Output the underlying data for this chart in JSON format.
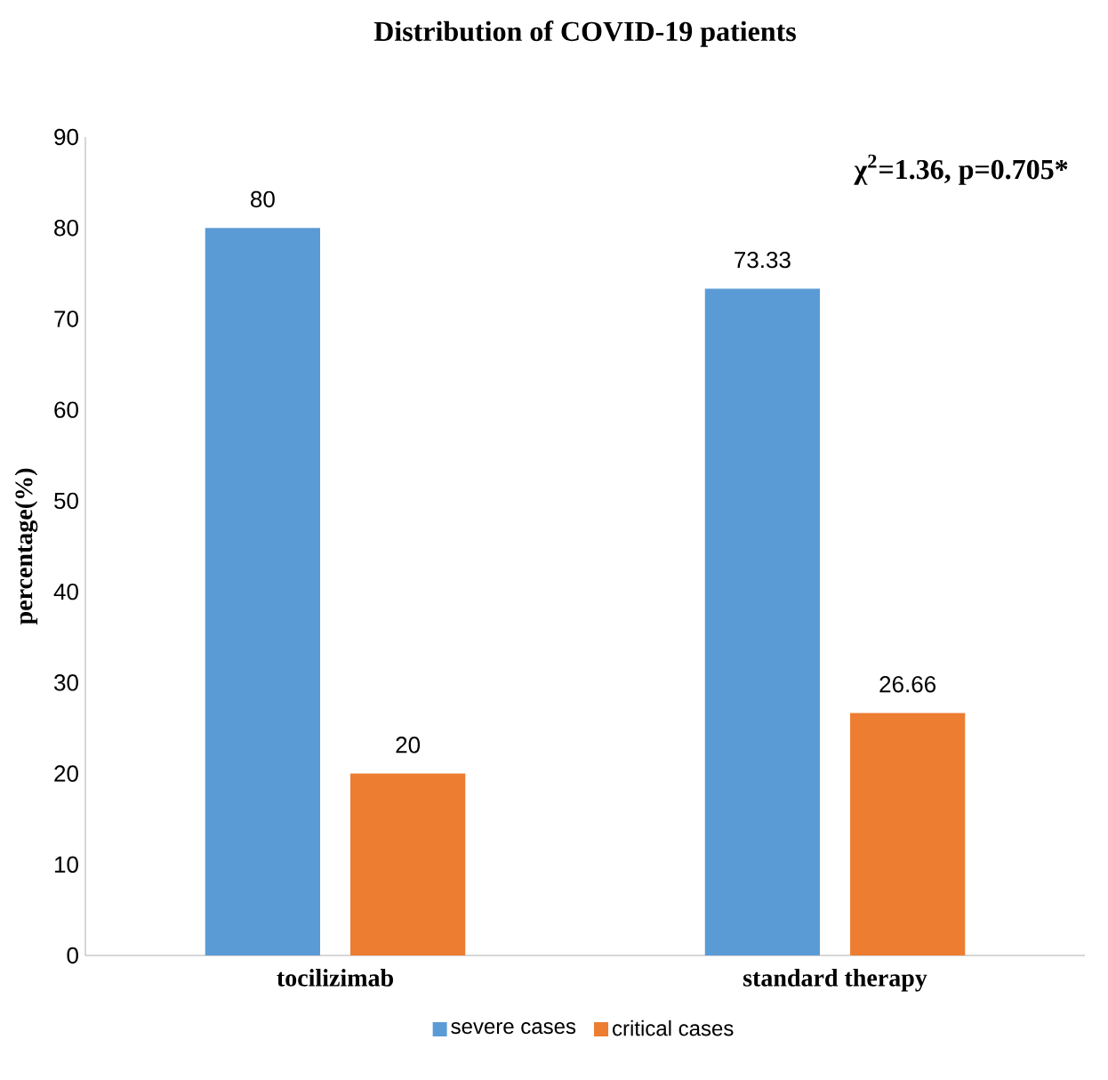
{
  "chart_data": {
    "type": "bar",
    "title": "Distribution of COVID-19 patients",
    "ylabel": "percentage(%)",
    "categories": [
      "tocilizimab",
      "standard therapy"
    ],
    "series": [
      {
        "name": "severe cases",
        "color": "#5b9bd5",
        "values": [
          80,
          73.33
        ]
      },
      {
        "name": "critical cases",
        "color": "#ed7d31",
        "values": [
          20,
          26.66
        ]
      }
    ],
    "ylim": [
      0,
      90
    ],
    "yticks": [
      0,
      10,
      20,
      30,
      40,
      50,
      60,
      70,
      80,
      90
    ],
    "data_labels": true,
    "legend": "bottom",
    "annotations": [
      "χ$^{2}$=1.36, p=0.705*"
    ]
  }
}
